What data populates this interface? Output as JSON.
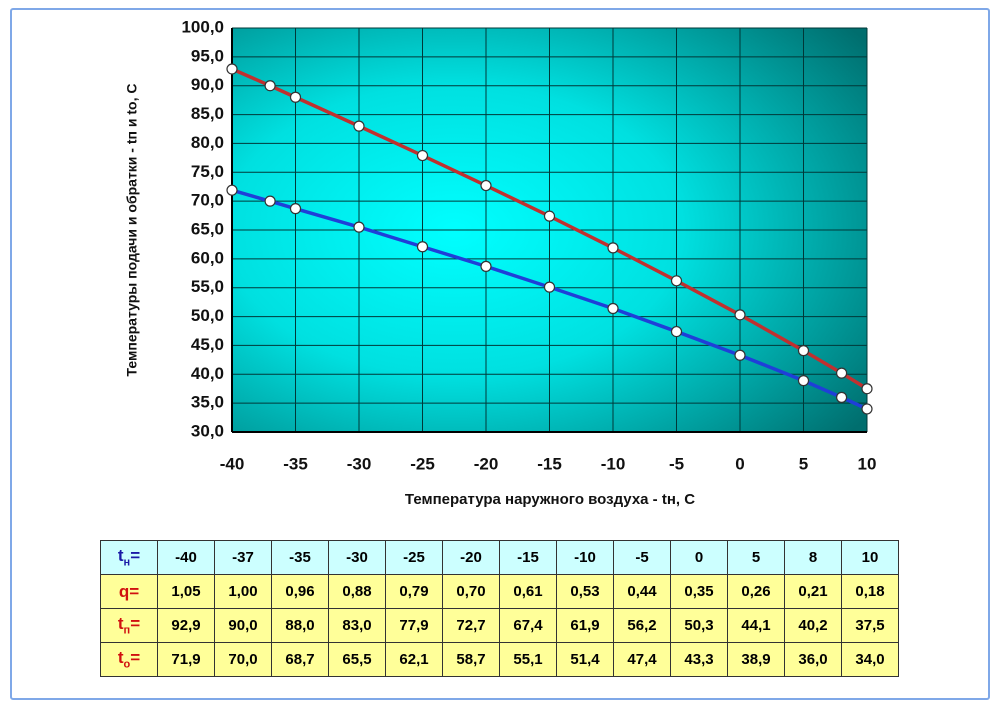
{
  "chart_data": {
    "type": "line",
    "x_label": "Температура наружного воздуха - tн, C",
    "y_label": "Температуры подачи и обратки - tп и to, C",
    "x": [
      -40,
      -37,
      -35,
      -30,
      -25,
      -20,
      -15,
      -10,
      -5,
      0,
      5,
      8,
      10
    ],
    "series": [
      {
        "color": "#c0302f",
        "values": [
          92.9,
          90.0,
          88.0,
          83.0,
          77.9,
          72.7,
          67.4,
          61.9,
          56.2,
          50.3,
          44.1,
          40.2,
          37.5
        ]
      },
      {
        "color": "#1f3fd8",
        "values": [
          71.9,
          70.0,
          68.7,
          65.5,
          62.1,
          58.7,
          55.1,
          51.4,
          47.4,
          43.3,
          38.9,
          36.0,
          34.0
        ]
      }
    ],
    "xlim": [
      -40,
      10
    ],
    "ylim": [
      30,
      100
    ],
    "xticks": [
      -40,
      -35,
      -30,
      -25,
      -20,
      -15,
      -10,
      -5,
      0,
      5,
      10
    ],
    "yticks": [
      {
        "value": 30,
        "label": "30,0"
      },
      {
        "value": 35,
        "label": "35,0"
      },
      {
        "value": 40,
        "label": "40,0"
      },
      {
        "value": 45,
        "label": "45,0"
      },
      {
        "value": 50,
        "label": "50,0"
      },
      {
        "value": 55,
        "label": "55,0"
      },
      {
        "value": 60,
        "label": "60,0"
      },
      {
        "value": 65,
        "label": "65,0"
      },
      {
        "value": 70,
        "label": "70,0"
      },
      {
        "value": 75,
        "label": "75,0"
      },
      {
        "value": 80,
        "label": "80,0"
      },
      {
        "value": 85,
        "label": "85,0"
      },
      {
        "value": 90,
        "label": "90,0"
      },
      {
        "value": 95,
        "label": "95,0"
      },
      {
        "value": 100,
        "label": "100,0"
      }
    ],
    "grid": true
  },
  "table": {
    "rows": [
      {
        "label": {
          "main": "t",
          "sub": "н",
          "tail": "=",
          "color": "#1a1aa6"
        },
        "background": "#ccffff",
        "cells": [
          "-40",
          "-37",
          "-35",
          "-30",
          "-25",
          "-20",
          "-15",
          "-10",
          "-5",
          "0",
          "5",
          "8",
          "10"
        ]
      },
      {
        "label": {
          "main": "q",
          "sub": "",
          "tail": "=",
          "color": "#d01010"
        },
        "background": "#ffff99",
        "cells": [
          "1,05",
          "1,00",
          "0,96",
          "0,88",
          "0,79",
          "0,70",
          "0,61",
          "0,53",
          "0,44",
          "0,35",
          "0,26",
          "0,21",
          "0,18"
        ]
      },
      {
        "label": {
          "main": "t",
          "sub": "п",
          "tail": "=",
          "color": "#d01010"
        },
        "background": "#ffff99",
        "cells": [
          "92,9",
          "90,0",
          "88,0",
          "83,0",
          "77,9",
          "72,7",
          "67,4",
          "61,9",
          "56,2",
          "50,3",
          "44,1",
          "40,2",
          "37,5"
        ]
      },
      {
        "label": {
          "main": "t",
          "sub": "о",
          "tail": "=",
          "color": "#d01010"
        },
        "background": "#ffff99",
        "cells": [
          "71,9",
          "70,0",
          "68,7",
          "65,5",
          "62,1",
          "58,7",
          "55,1",
          "51,4",
          "47,4",
          "43,3",
          "38,9",
          "36,0",
          "34,0"
        ]
      }
    ]
  }
}
